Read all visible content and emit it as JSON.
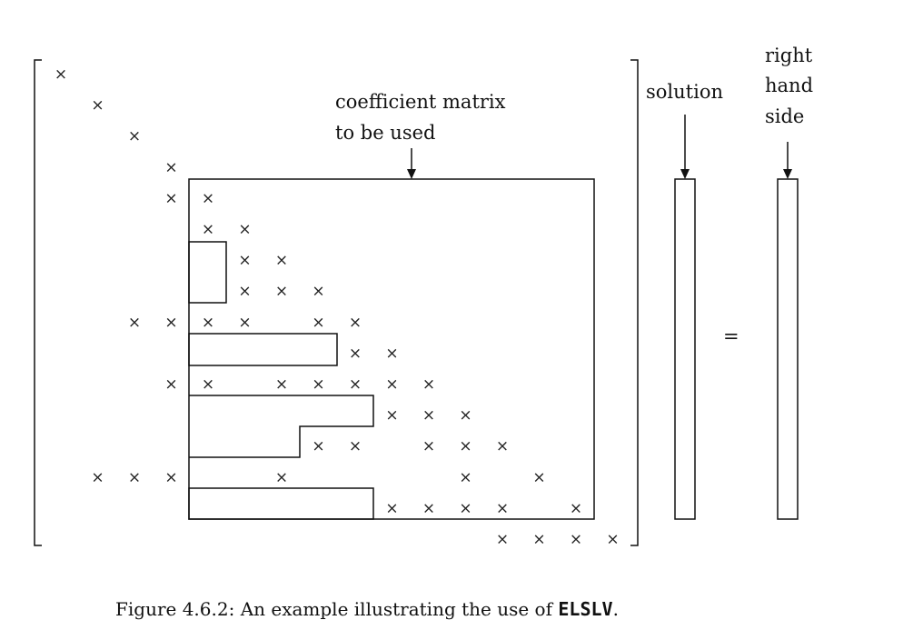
{
  "labels": {
    "coefficient_line1": "coefficient matrix",
    "coefficient_line2": "to be used",
    "solution": "solution",
    "rhs_line1": "right",
    "rhs_line2": "hand",
    "rhs_line3": "side",
    "equals": "="
  },
  "caption": {
    "prefix": "Figure 4.6.2: An example illustrating the use of ",
    "code": "ELSLV",
    "suffix": "."
  },
  "matrix": {
    "size": 16,
    "mark": "×",
    "nonzeros": [
      [
        1,
        1
      ],
      [
        2,
        2
      ],
      [
        3,
        3
      ],
      [
        4,
        4
      ],
      [
        5,
        4
      ],
      [
        5,
        5
      ],
      [
        6,
        5
      ],
      [
        6,
        6
      ],
      [
        7,
        6
      ],
      [
        7,
        7
      ],
      [
        8,
        6
      ],
      [
        8,
        7
      ],
      [
        8,
        8
      ],
      [
        9,
        3
      ],
      [
        9,
        4
      ],
      [
        9,
        5
      ],
      [
        9,
        6
      ],
      [
        9,
        8
      ],
      [
        9,
        9
      ],
      [
        10,
        9
      ],
      [
        10,
        10
      ],
      [
        11,
        4
      ],
      [
        11,
        5
      ],
      [
        11,
        7
      ],
      [
        11,
        8
      ],
      [
        11,
        9
      ],
      [
        11,
        10
      ],
      [
        11,
        11
      ],
      [
        12,
        10
      ],
      [
        12,
        11
      ],
      [
        12,
        12
      ],
      [
        13,
        8
      ],
      [
        13,
        9
      ],
      [
        13,
        11
      ],
      [
        13,
        12
      ],
      [
        13,
        13
      ],
      [
        14,
        2
      ],
      [
        14,
        3
      ],
      [
        14,
        4
      ],
      [
        14,
        7
      ],
      [
        14,
        12
      ],
      [
        14,
        14
      ],
      [
        15,
        10
      ],
      [
        15,
        11
      ],
      [
        15,
        12
      ],
      [
        15,
        13
      ],
      [
        15,
        15
      ],
      [
        16,
        13
      ],
      [
        16,
        14
      ],
      [
        16,
        15
      ],
      [
        16,
        16
      ]
    ]
  }
}
